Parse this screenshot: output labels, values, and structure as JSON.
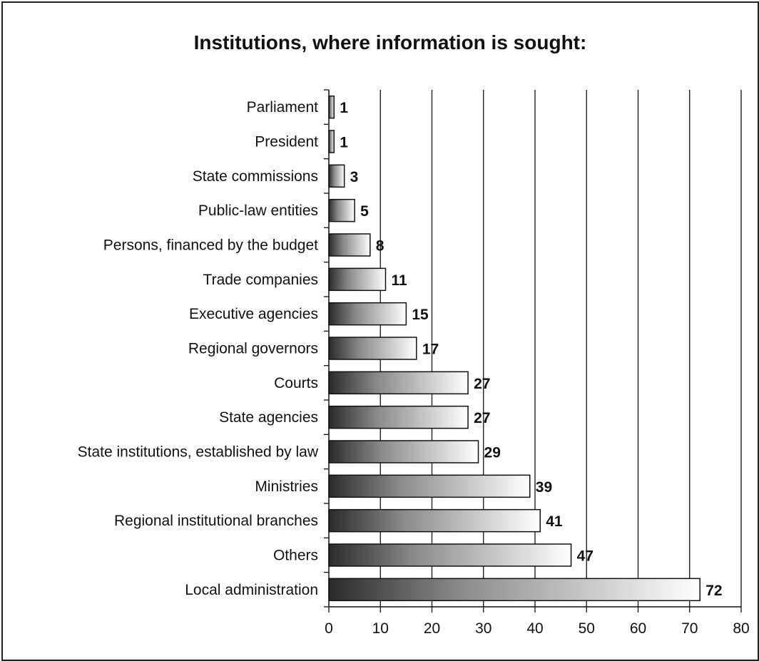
{
  "chart_data": {
    "type": "bar",
    "orientation": "horizontal",
    "title": "Institutions, where information is sought:",
    "categories": [
      "Parliament",
      "President",
      "State commissions",
      "Public-law entities",
      "Persons, financed by the budget",
      "Trade companies",
      "Executive agencies",
      "Regional governors",
      "Courts",
      "State agencies",
      "State institutions, established by law",
      "Ministries",
      "Regional institutional branches",
      "Others",
      "Local administration"
    ],
    "values": [
      1,
      1,
      3,
      5,
      8,
      11,
      15,
      17,
      27,
      27,
      29,
      39,
      41,
      47,
      72
    ],
    "value_labels": [
      "1",
      "1",
      "3",
      "5",
      "8",
      "11",
      "15",
      "17",
      "27",
      "27",
      "29",
      "39",
      "41",
      "47",
      "72"
    ],
    "xlim": [
      0,
      80
    ],
    "x_ticks": [
      0,
      10,
      20,
      30,
      40,
      50,
      60,
      70,
      80
    ],
    "x_tick_labels": [
      "0",
      "10",
      "20",
      "30",
      "40",
      "50",
      "60",
      "70",
      "80"
    ],
    "grid": "vertical",
    "legend": "none",
    "colors": {
      "bar_dark": "#2a2a2a",
      "bar_light": "#ffffff",
      "axis": "#111111",
      "grid": "#111111"
    }
  }
}
